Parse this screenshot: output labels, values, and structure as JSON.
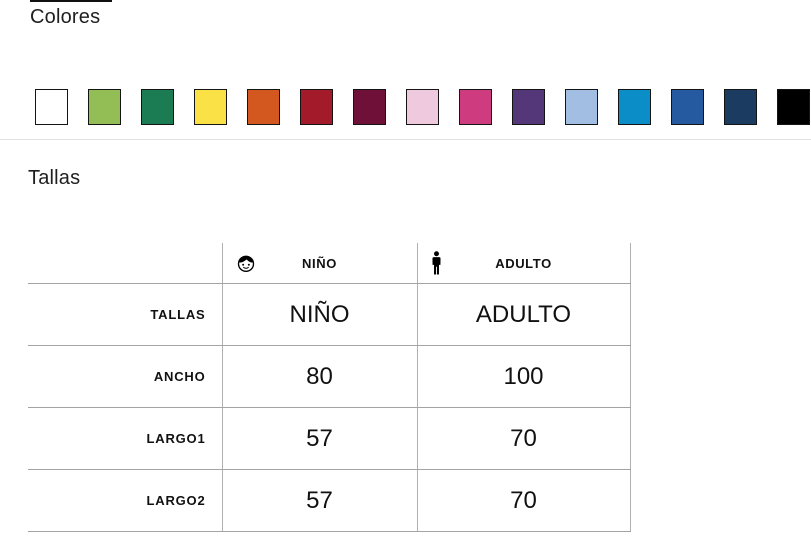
{
  "colors_section": {
    "title": "Colores",
    "swatches": [
      {
        "name": "white",
        "hex": "#ffffff"
      },
      {
        "name": "yellow-green",
        "hex": "#93be55"
      },
      {
        "name": "green",
        "hex": "#1b7b52"
      },
      {
        "name": "yellow",
        "hex": "#fae145"
      },
      {
        "name": "orange",
        "hex": "#d2581f"
      },
      {
        "name": "dark-red",
        "hex": "#a31b2b"
      },
      {
        "name": "burgundy",
        "hex": "#6e1038"
      },
      {
        "name": "light-pink",
        "hex": "#efcade"
      },
      {
        "name": "fuchsia",
        "hex": "#cf3b7f"
      },
      {
        "name": "purple",
        "hex": "#533778"
      },
      {
        "name": "light-blue",
        "hex": "#a2bee2"
      },
      {
        "name": "sky-blue",
        "hex": "#0b8dc7"
      },
      {
        "name": "blue",
        "hex": "#265aa0"
      },
      {
        "name": "navy",
        "hex": "#1b3c60"
      },
      {
        "name": "black",
        "hex": "#000000"
      }
    ]
  },
  "sizes_section": {
    "title": "Tallas",
    "table": {
      "columns": [
        {
          "icon": "child-icon",
          "label": "NIÑO"
        },
        {
          "icon": "adult-icon",
          "label": "ADULTO"
        }
      ],
      "rows": [
        {
          "label": "TALLAS",
          "nino": "NIÑO",
          "adulto": "ADULTO"
        },
        {
          "label": "ANCHO",
          "nino": "80",
          "adulto": "100"
        },
        {
          "label": "LARGO1",
          "nino": "57",
          "adulto": "70"
        },
        {
          "label": "LARGO2",
          "nino": "57",
          "adulto": "70"
        }
      ]
    }
  }
}
